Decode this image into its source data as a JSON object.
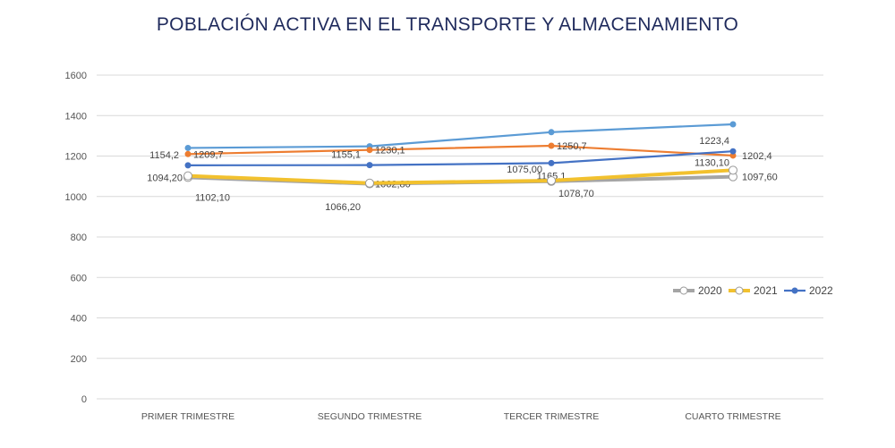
{
  "chart_data": {
    "type": "line",
    "title": "POBLACIÓN ACTIVA EN EL TRANSPORTE Y ALMACENAMIENTO",
    "categories": [
      "PRIMER TRIMESTRE",
      "SEGUNDO TRIMESTRE",
      "TERCER TRIMESTRE",
      "CUARTO TRIMESTRE"
    ],
    "ylim": [
      0,
      1600
    ],
    "yticks": [
      0,
      200,
      400,
      600,
      800,
      1000,
      1200,
      1400,
      1600
    ],
    "grid": true,
    "legend_position": "right",
    "series": [
      {
        "values": [
          1240,
          1248,
          1318,
          1357
        ],
        "color": "#5b9bd5",
        "labels": [],
        "marker": "filled",
        "in_legend": false
      },
      {
        "values": [
          1209.7,
          1230.1,
          1250.7,
          1202.4
        ],
        "color": "#ed7d31",
        "labels": [
          "1209,7",
          "1230,1",
          "1250,7",
          "1202,4"
        ],
        "marker": "filled",
        "in_legend": false
      },
      {
        "name": "2022",
        "values": [
          1154.2,
          1155.1,
          1165.1,
          1223.4
        ],
        "color": "#4472c4",
        "labels": [
          "1154,2",
          "1155,1",
          "1165,1",
          "1223,4"
        ],
        "marker": "filled",
        "in_legend": true
      },
      {
        "name": "2020",
        "values": [
          1094.2,
          1062.8,
          1075.0,
          1097.6
        ],
        "color": "#a5a5a5",
        "labels": [
          "1094,20",
          "1062,80",
          "1075,00",
          "1097,60"
        ],
        "marker": "hollow",
        "in_legend": true
      },
      {
        "name": "2021",
        "values": [
          1102.1,
          1066.2,
          1078.7,
          1130.1
        ],
        "color": "#f2c12e",
        "labels": [
          "1102,10",
          "1066,20",
          "1078,70",
          "1130,10"
        ],
        "marker": "hollow",
        "in_legend": true
      }
    ]
  }
}
